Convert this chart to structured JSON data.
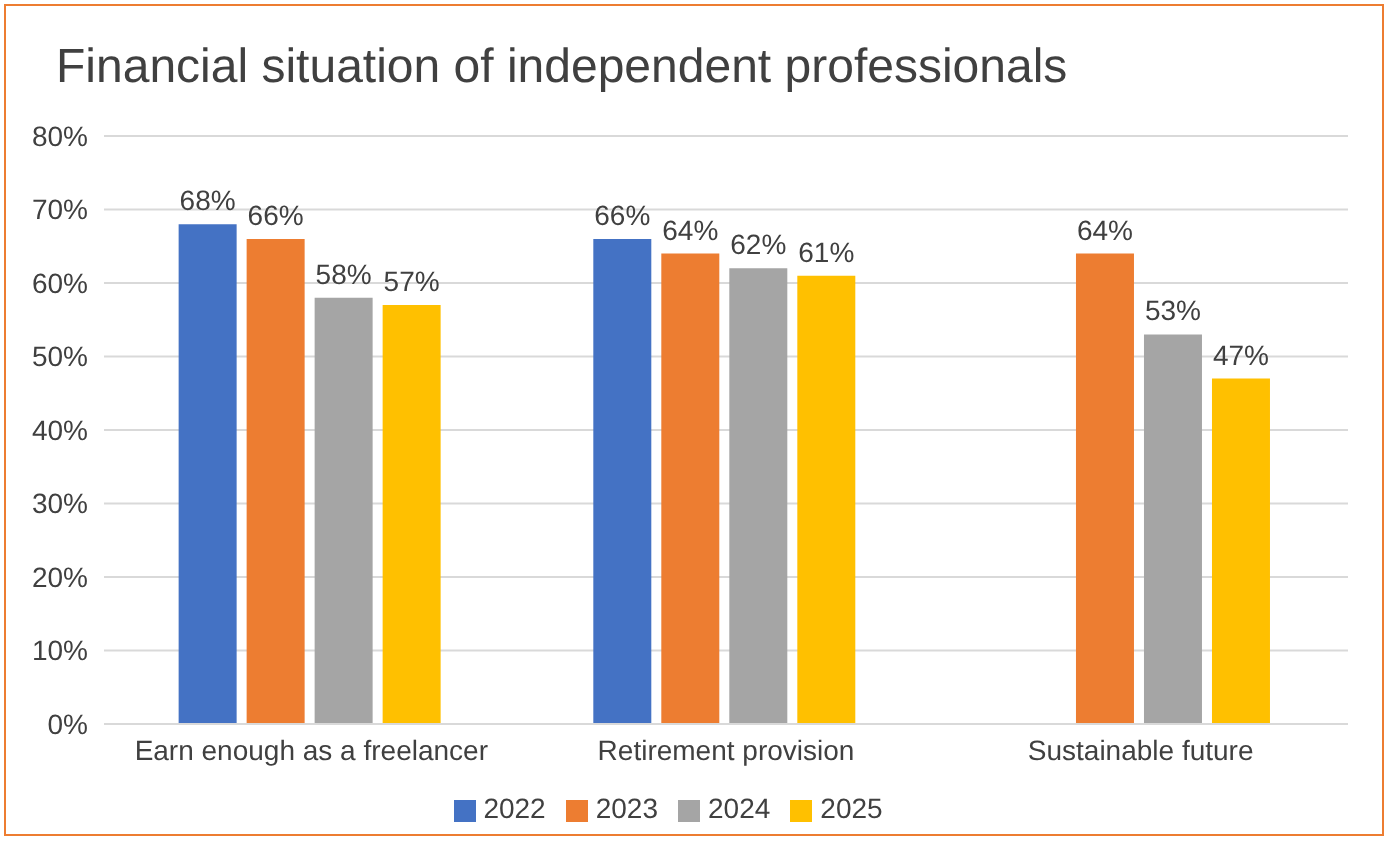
{
  "chart_data": {
    "type": "bar",
    "title": "Financial situation of independent professionals",
    "categories": [
      "Earn enough as a freelancer",
      "Retirement provision",
      "Sustainable future"
    ],
    "series": [
      {
        "name": "2022",
        "color": "#4472c4",
        "values": [
          68,
          66,
          null
        ],
        "value_labels": [
          "68%",
          "66%",
          null
        ]
      },
      {
        "name": "2023",
        "color": "#ed7d31",
        "values": [
          66,
          64,
          64
        ],
        "value_labels": [
          "66%",
          "64%",
          "64%"
        ]
      },
      {
        "name": "2024",
        "color": "#a5a5a5",
        "values": [
          58,
          62,
          53
        ],
        "value_labels": [
          "58%",
          "62%",
          "53%"
        ]
      },
      {
        "name": "2025",
        "color": "#ffc000",
        "values": [
          57,
          61,
          47
        ],
        "value_labels": [
          "57%",
          "61%",
          "47%"
        ]
      }
    ],
    "ylim": [
      0,
      80
    ],
    "yticks": [
      {
        "value": 0,
        "label": "0%"
      },
      {
        "value": 10,
        "label": "10%"
      },
      {
        "value": 20,
        "label": "20%"
      },
      {
        "value": 30,
        "label": "30%"
      },
      {
        "value": 40,
        "label": "40%"
      },
      {
        "value": 50,
        "label": "50%"
      },
      {
        "value": 60,
        "label": "60%"
      },
      {
        "value": 70,
        "label": "70%"
      },
      {
        "value": 80,
        "label": "80%"
      }
    ],
    "grid": "y",
    "legend": "bottom"
  }
}
